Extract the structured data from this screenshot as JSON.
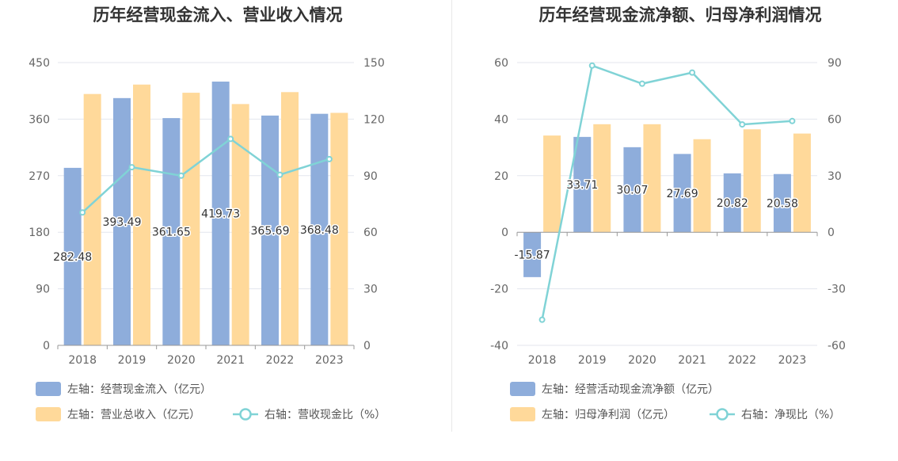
{
  "colors": {
    "bar_blue": "#8eaddb",
    "bar_orange": "#ffd99a",
    "line": "#80d3d6",
    "grid": "#e3e6ee",
    "axis": "#999999"
  },
  "chart_data": [
    {
      "type": "bar",
      "title": "历年经营现金流入、营业收入情况",
      "categories": [
        "2018",
        "2019",
        "2020",
        "2021",
        "2022",
        "2023"
      ],
      "left_axis": {
        "ylim": [
          0,
          450
        ],
        "ticks": [
          "450",
          "360",
          "270",
          "180",
          "90",
          "0"
        ]
      },
      "right_axis": {
        "ylim": [
          0,
          150
        ],
        "ticks": [
          "150",
          "120",
          "90",
          "60",
          "30",
          "0"
        ]
      },
      "series": [
        {
          "name": "左轴：经营现金流入（亿元）",
          "type": "bar",
          "axis": "left",
          "values": [
            282.48,
            393.49,
            361.65,
            419.73,
            365.69,
            368.48
          ],
          "labels": [
            "282.48",
            "393.49",
            "361.65",
            "419.73",
            "365.69",
            "368.48"
          ]
        },
        {
          "name": "左轴：营业总收入（亿元）",
          "type": "bar",
          "axis": "left",
          "values": [
            400,
            415,
            402,
            384,
            403,
            370
          ]
        },
        {
          "name": "右轴：营收现金比（%）",
          "type": "line",
          "axis": "right",
          "values": [
            70.5,
            94.5,
            90,
            109.5,
            90.5,
            98.8
          ]
        }
      ],
      "legend_position": "bottom-left",
      "grid": true
    },
    {
      "type": "bar",
      "title": "历年经营现金流净额、归母净利润情况",
      "categories": [
        "2018",
        "2019",
        "2020",
        "2021",
        "2022",
        "2023"
      ],
      "left_axis": {
        "ylim": [
          -40,
          60
        ],
        "ticks": [
          "60",
          "40",
          "20",
          "0",
          "-20",
          "-40"
        ]
      },
      "right_axis": {
        "ylim": [
          -60,
          90
        ],
        "ticks": [
          "90",
          "60",
          "30",
          "0",
          "-30",
          "-60"
        ]
      },
      "series": [
        {
          "name": "左轴：经营活动现金流净额（亿元）",
          "type": "bar",
          "axis": "left",
          "values": [
            -15.87,
            33.71,
            30.07,
            27.69,
            20.82,
            20.58
          ],
          "labels": [
            "-15.87",
            "33.71",
            "30.07",
            "27.69",
            "20.82",
            "20.58"
          ]
        },
        {
          "name": "左轴：归母净利润（亿元）",
          "type": "bar",
          "axis": "left",
          "values": [
            34.2,
            38.2,
            38.2,
            32.9,
            36.4,
            34.9
          ]
        },
        {
          "name": "右轴：净现比（%）",
          "type": "line",
          "axis": "right",
          "values": [
            -46.4,
            88.4,
            78.8,
            84.7,
            57.2,
            59.0
          ]
        }
      ],
      "legend_position": "bottom-left",
      "grid": true
    }
  ]
}
